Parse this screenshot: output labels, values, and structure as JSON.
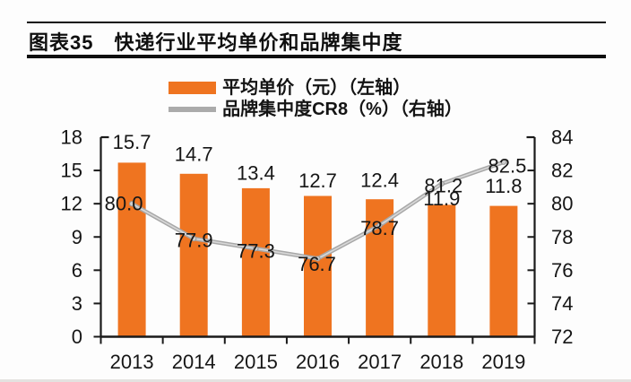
{
  "header": {
    "title": "图表35　快递行业平均单价和品牌集中度"
  },
  "chart_data": {
    "type": "bar",
    "title": "快递行业平均单价和品牌集中度",
    "categories": [
      "2013",
      "2014",
      "2015",
      "2016",
      "2017",
      "2018",
      "2019"
    ],
    "series": [
      {
        "name": "平均单价（元）（左轴）",
        "type": "bar",
        "axis": "left",
        "color": "#EF7420",
        "values": [
          15.7,
          14.7,
          13.4,
          12.7,
          12.4,
          11.9,
          11.8
        ]
      },
      {
        "name": "品牌集中度CR8（%）（右轴）",
        "type": "line",
        "axis": "right",
        "color": "#ABABAB",
        "values": [
          80.0,
          77.9,
          77.3,
          76.7,
          78.7,
          81.2,
          82.5
        ]
      }
    ],
    "left_axis": {
      "min": 0,
      "max": 18,
      "step": 3,
      "ticks": [
        "0",
        "3",
        "6",
        "9",
        "12",
        "15",
        "18"
      ]
    },
    "right_axis": {
      "min": 72,
      "max": 84,
      "step": 2,
      "ticks": [
        "72",
        "74",
        "76",
        "78",
        "80",
        "82",
        "84"
      ]
    },
    "legend_position": "top",
    "grid": false,
    "data_label_decimals": 1,
    "axis_color": "#1a1a1a",
    "label_color": "#161616"
  }
}
